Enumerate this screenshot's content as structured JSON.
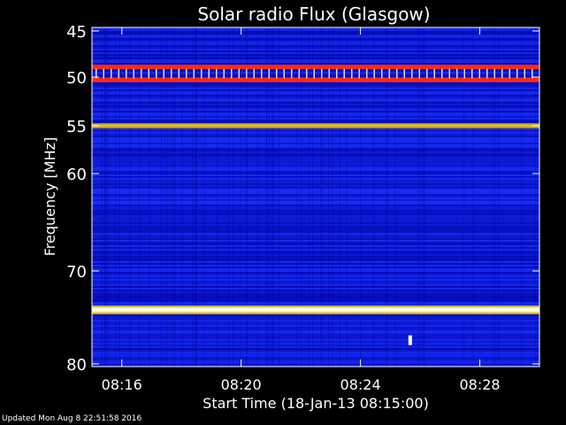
{
  "chart_data": {
    "type": "heatmap",
    "title": "Solar radio Flux (Glasgow)",
    "xlabel": "Start Time (18-Jan-13 08:15:00)",
    "ylabel": "Frequency [MHz]",
    "x_range": [
      "08:15:00",
      "08:30:00"
    ],
    "y_range": [
      45,
      80
    ],
    "y_ticks": [
      45,
      50,
      55,
      60,
      70,
      80
    ],
    "y_tick_labels": [
      "45",
      "50",
      "55",
      "60",
      "70",
      "80"
    ],
    "x_ticks": [
      "08:16",
      "08:20",
      "08:24",
      "08:28"
    ],
    "colormap": [
      "#000000",
      "#0000b0",
      "#1530ff",
      "#ff2000",
      "#d8c000",
      "#ffffff"
    ],
    "background_level": "blue",
    "emission_bands": [
      {
        "freq_mhz": 48.9,
        "color": "#ff2a10",
        "description": "red band"
      },
      {
        "freq_mhz": 50.3,
        "color": "#ff2a10",
        "description": "red band"
      },
      {
        "freq_mhz": 55.0,
        "color": "#e0c000",
        "description": "yellow band"
      },
      {
        "freq_mhz": 74.2,
        "color": "#ffff80",
        "description": "white-yellow band"
      }
    ],
    "point_sources": [
      {
        "time": "08:25:40",
        "freq_mhz": 77.5
      }
    ]
  },
  "footer": {
    "updated": "Updated Mon Aug  8 22:51:58 2016"
  }
}
